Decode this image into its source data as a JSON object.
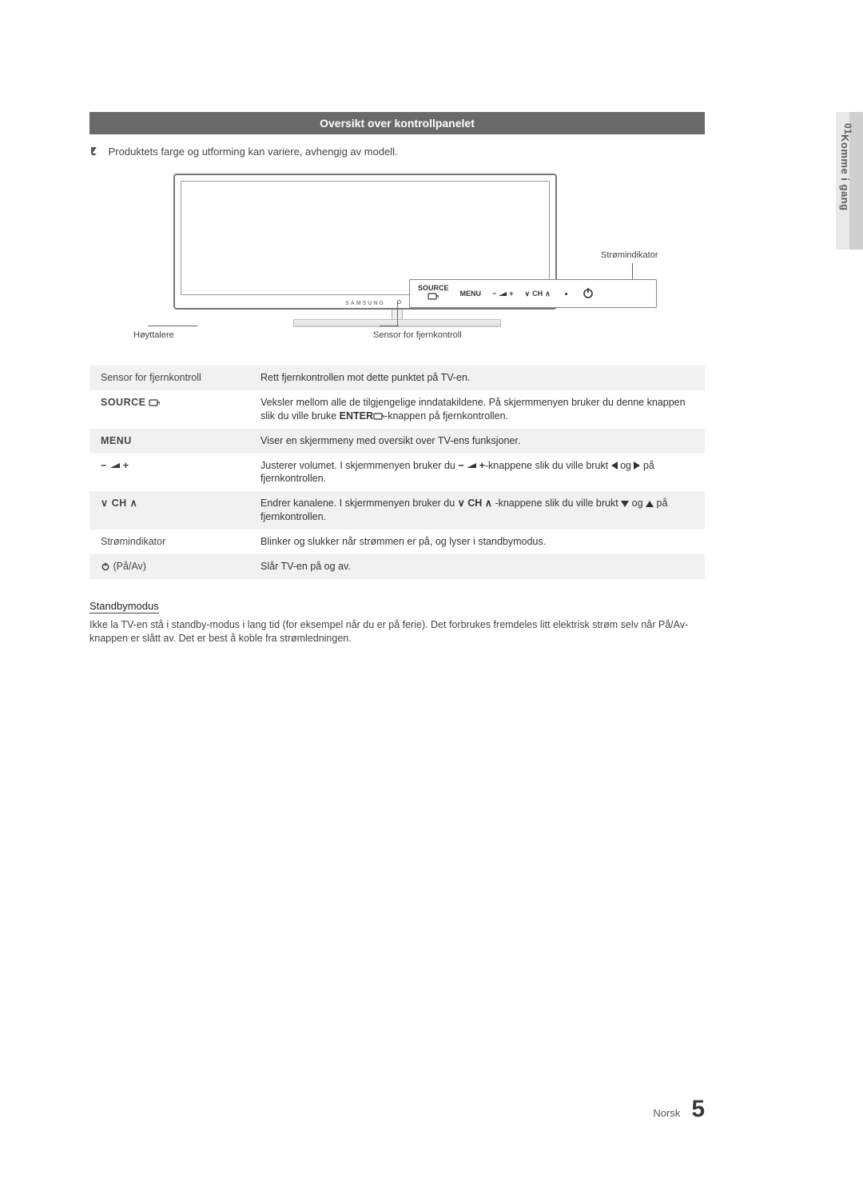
{
  "colors": {
    "section_bar_bg": "#6a6a6a",
    "section_bar_fg": "#ffffff",
    "alt_row_bg": "#f1f1f1",
    "text": "#333333",
    "muted": "#444444",
    "side_tab_light": "#e9e9e9",
    "side_tab_dark": "#cfcfcf"
  },
  "section_title": "Oversikt over kontrollpanelet",
  "note": "Produktets farge og utforming kan variere, avhengig av modell.",
  "diagram": {
    "brand": "SAMSUNG",
    "labels": {
      "power_indicator": "Strømindikator",
      "speakers": "Høyttalere",
      "ir_sensor": "Sensor for fjernkontroll"
    },
    "buttons": {
      "source": "SOURCE",
      "menu": "MENU",
      "ch": "CH"
    }
  },
  "rows": [
    {
      "key_plain": "Sensor for fjernkontroll",
      "desc": "Rett fjernkontrollen mot dette punktet på TV-en."
    },
    {
      "key_bold": "SOURCE",
      "key_icon": "enter",
      "desc_pre": "Veksler mellom alle de tilgjengelige inndatakildene. På skjermmenyen bruker du denne knappen slik du ville bruke ",
      "desc_bold": "ENTER",
      "desc_icon": "enter",
      "desc_post": "-knappen på fjernkontrollen."
    },
    {
      "key_bold": "MENU",
      "desc": "Viser en skjermmeny med oversikt over TV-ens funksjoner."
    },
    {
      "key_vol": true,
      "desc_a": "Justerer volumet. I skjermmenyen bruker du ",
      "desc_b": "-knappene slik du ville brukt ",
      "desc_c": " og ",
      "desc_d": " på fjernkontrollen."
    },
    {
      "key_ch": true,
      "key_ch_label": "CH",
      "desc_a": "Endrer kanalene. I skjermmenyen bruker du ",
      "desc_b": " -knappene slik du ville brukt ",
      "desc_c": " og ",
      "desc_d": " på fjernkontrollen."
    },
    {
      "key_plain": "Strømindikator",
      "desc": "Blinker og slukker når strømmen er på, og lyser i standbymodus."
    },
    {
      "key_power": true,
      "key_power_label": " (På/Av)",
      "desc": "Slår TV-en på og av."
    }
  ],
  "standby": {
    "heading": "Standbymodus",
    "body": "Ikke la TV-en stå i standby-modus i lang tid (for eksempel når du er på ferie). Det forbrukes fremdeles litt elektrisk strøm selv når På/Av-knappen er slått av. Det er best å koble fra strømledningen."
  },
  "side_tab": {
    "number": "01",
    "label": "Komme i gang"
  },
  "footer": {
    "lang": "Norsk",
    "page": "5"
  }
}
